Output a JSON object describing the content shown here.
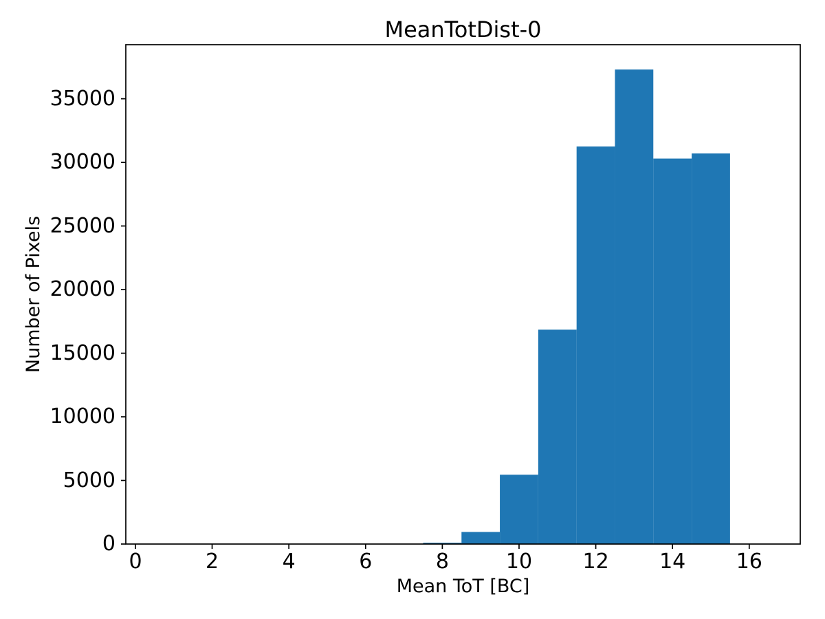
{
  "figure": {
    "background_color": "#ffffff",
    "bar_color": "#1f77b4",
    "axis_color": "#000000",
    "text_color": "#000000"
  },
  "chart_data": {
    "type": "bar",
    "subtype": "histogram",
    "title": "MeanTotDist-0",
    "xlabel": "Mean ToT [BC]",
    "ylabel": "Number of Pixels",
    "bin_edges": [
      7.5,
      8.5,
      9.5,
      10.5,
      11.5,
      12.5,
      13.5,
      14.5,
      15.5
    ],
    "values": [
      100,
      950,
      5450,
      16850,
      31250,
      37300,
      30300,
      30700
    ],
    "x_ticks": [
      0,
      2,
      4,
      6,
      8,
      10,
      12,
      14,
      16
    ],
    "y_ticks": [
      0,
      5000,
      10000,
      15000,
      20000,
      25000,
      30000,
      35000
    ],
    "xlim": [
      -0.25,
      17.33
    ],
    "ylim": [
      0,
      39250
    ],
    "grid": false,
    "legend": null
  }
}
